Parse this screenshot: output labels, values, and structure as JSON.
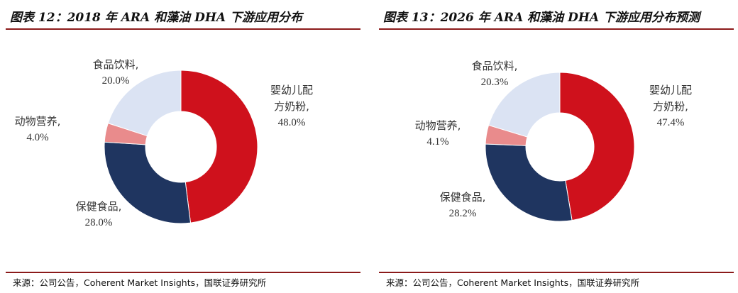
{
  "chart_data": [
    {
      "type": "donut",
      "title": "图表 12：2018 年 ARA 和藻油 DHA 下游应用分布",
      "categories": [
        "婴幼儿配方奶粉,",
        "保健食品,",
        "动物营养,",
        "食品饮料,"
      ],
      "values": [
        48.0,
        28.0,
        4.0,
        20.0
      ],
      "value_labels": [
        "48.0%",
        "28.0%",
        "4.0%",
        "20.0%"
      ],
      "colors": [
        "#cf111c",
        "#1f3560",
        "#e98b8c",
        "#dbe3f3"
      ],
      "source": "来源：公司公告，Coherent Market Insights，国联证券研究所"
    },
    {
      "type": "donut",
      "title": "图表 13：2026 年 ARA 和藻油 DHA 下游应用分布预测",
      "categories": [
        "婴幼儿配方奶粉,",
        "保健食品,",
        "动物营养,",
        "食品饮料,"
      ],
      "values": [
        47.4,
        28.2,
        4.1,
        20.3
      ],
      "value_labels": [
        "47.4%",
        "28.2%",
        "4.1%",
        "20.3%"
      ],
      "colors": [
        "#cf111c",
        "#1f3560",
        "#e98b8c",
        "#dbe3f3"
      ],
      "source": "来源：公司公告，Coherent Market Insights，国联证券研究所"
    }
  ]
}
